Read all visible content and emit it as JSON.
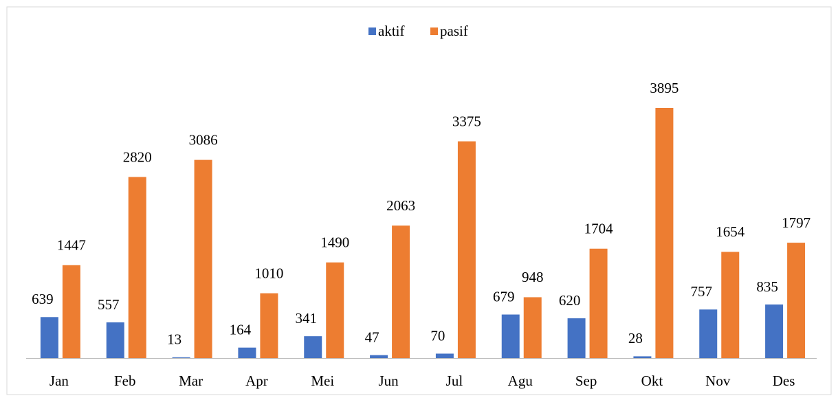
{
  "chart_data": {
    "type": "bar",
    "categories": [
      "Jan",
      "Feb",
      "Mar",
      "Apr",
      "Mei",
      "Jun",
      "Jul",
      "Agu",
      "Sep",
      "Okt",
      "Nov",
      "Des"
    ],
    "series": [
      {
        "name": "aktif",
        "color": "#4472c4",
        "values": [
          639,
          557,
          13,
          164,
          341,
          47,
          70,
          679,
          620,
          28,
          757,
          835
        ]
      },
      {
        "name": "pasif",
        "color": "#ed7d31",
        "values": [
          1447,
          2820,
          3086,
          1010,
          1490,
          2063,
          3375,
          948,
          1704,
          3895,
          1654,
          1797
        ]
      }
    ],
    "legend": "top"
  }
}
